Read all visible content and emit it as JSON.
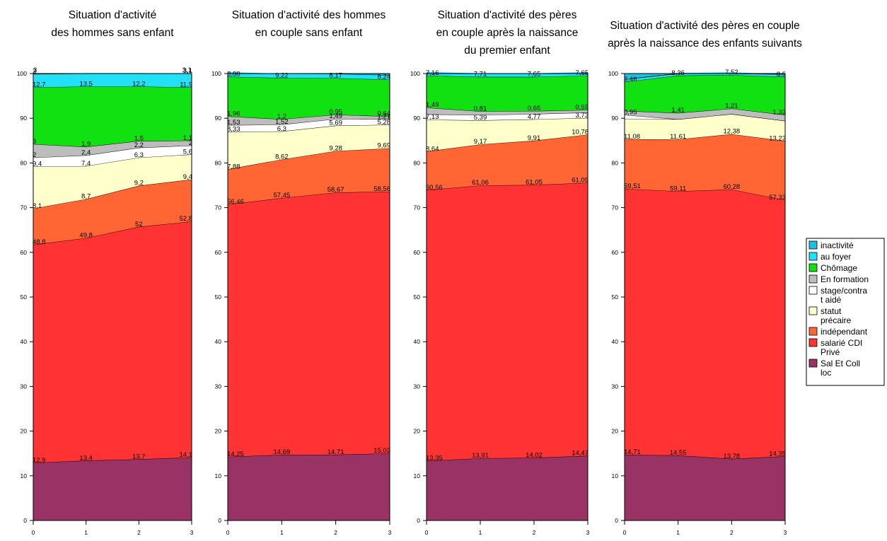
{
  "chart_data": [
    {
      "type": "area",
      "title": [
        "Situation d'activité",
        "des hommes sans enfant"
      ],
      "x": [
        0,
        1,
        2,
        3
      ],
      "ylim": [
        0,
        100
      ],
      "stack_top_label_row": [
        "3",
        "",
        "",
        "3,1"
      ],
      "series": [
        {
          "name": "Sal Et Coll loc",
          "values": [
            "12,9",
            "13,4",
            "13,7",
            "14,1"
          ]
        },
        {
          "name": "salarié CDI Privé",
          "values": [
            "48,8",
            "49,8",
            "52",
            "52,8"
          ]
        },
        {
          "name": "indépendant",
          "values": [
            "8,1",
            "8,7",
            "9,2",
            "9,4"
          ]
        },
        {
          "name": "statut précaire",
          "values": [
            "9,4",
            "7,4",
            "6,3",
            "5,6"
          ]
        },
        {
          "name": "stage/contrat aidé",
          "values": [
            "2",
            "2,4",
            "2,2",
            "2"
          ]
        },
        {
          "name": "En formation",
          "values": [
            "3",
            "1,9",
            "1,5",
            "1,1"
          ]
        },
        {
          "name": "Chômage",
          "values": [
            "12,7",
            "13,5",
            "12,2",
            "11,9"
          ]
        },
        {
          "name": "au foyer",
          "values": [
            "3",
            "",
            "",
            "3,1"
          ]
        },
        {
          "name": "inactivité",
          "values": [
            "",
            "",
            "",
            ""
          ]
        }
      ]
    },
    {
      "type": "area",
      "title": [
        "Situation d'activité des hommes",
        "en couple sans enfant"
      ],
      "x": [
        0,
        1,
        2,
        3
      ],
      "ylim": [
        0,
        100
      ],
      "stack_top_label_row": [
        "",
        "",
        "",
        ""
      ],
      "series": [
        {
          "name": "Sal Et Coll loc",
          "values": [
            "14,25",
            "14,69",
            "14,71",
            "15,02"
          ]
        },
        {
          "name": "salarié CDI Privé",
          "values": [
            "56,46",
            "57,45",
            "58,67",
            "58,56"
          ]
        },
        {
          "name": "indépendant",
          "values": [
            "7,88",
            "8,62",
            "9,28",
            "9,69"
          ]
        },
        {
          "name": "statut précaire",
          "values": [
            "8,33",
            "6,3",
            "5,69",
            "5,28"
          ]
        },
        {
          "name": "stage/contrat aidé",
          "values": [
            "1,53",
            "1,52",
            "1,49",
            "1,21"
          ]
        },
        {
          "name": "En formation",
          "values": [
            "1,96",
            "1,2",
            "0,95",
            "0,64"
          ]
        },
        {
          "name": "Chômage",
          "values": [
            "8,88",
            "9,22",
            "8,17",
            "8,24"
          ]
        },
        {
          "name": "au foyer",
          "values": [
            "",
            "",
            "",
            ""
          ]
        },
        {
          "name": "inactivité",
          "values": [
            "",
            "",
            "",
            ""
          ]
        }
      ]
    },
    {
      "type": "area",
      "title": [
        "Situation d'activité des pères",
        "en couple après la naissance",
        "du premier enfant"
      ],
      "x": [
        0,
        1,
        2,
        3
      ],
      "ylim": [
        0,
        100
      ],
      "stack_top_label_row": [
        "",
        "",
        "",
        ""
      ],
      "series": [
        {
          "name": "Sal Et Coll loc",
          "values": [
            "13,35",
            "13,91",
            "14,02",
            "14,47"
          ]
        },
        {
          "name": "salarié CDI Privé",
          "values": [
            "60,56",
            "61,06",
            "61,05",
            "61,09"
          ]
        },
        {
          "name": "indépendant",
          "values": [
            "8,64",
            "9,17",
            "9,91",
            "10,78"
          ]
        },
        {
          "name": "statut précaire",
          "values": [
            "7,13",
            "5,39",
            "4,77",
            "3,73"
          ]
        },
        {
          "name": "stage/contrat aidé",
          "values": [
            "",
            "",
            "",
            ""
          ]
        },
        {
          "name": "En formation",
          "values": [
            "1,49",
            "0,81",
            "0,65",
            "0,59"
          ]
        },
        {
          "name": "Chômage",
          "values": [
            "7,16",
            "7,71",
            "7,65",
            "7,65"
          ]
        },
        {
          "name": "au foyer",
          "values": [
            "",
            "",
            "",
            ""
          ]
        },
        {
          "name": "inactivité",
          "values": [
            "",
            "",
            "",
            ""
          ]
        }
      ]
    },
    {
      "type": "area",
      "title": [
        "Situation d'activité des pères en couple",
        "après la naissance des enfants suivants"
      ],
      "x": [
        0,
        1,
        2,
        3
      ],
      "ylim": [
        0,
        100
      ],
      "stack_top_label_row": [
        "",
        "",
        "",
        ""
      ],
      "series": [
        {
          "name": "Sal Et Coll loc",
          "values": [
            "14,71",
            "14,55",
            "13,78",
            "14,35"
          ]
        },
        {
          "name": "salarié CDI Privé",
          "values": [
            "59,51",
            "59,11",
            "60,28",
            "57,33"
          ]
        },
        {
          "name": "indépendant",
          "values": [
            "11,08",
            "11,61",
            "12,38",
            "13,23"
          ]
        },
        {
          "name": "statut précaire",
          "values": [
            "",
            "",
            "",
            ""
          ]
        },
        {
          "name": "stage/contrat aidé",
          "values": [
            "0,95",
            "",
            "",
            ""
          ]
        },
        {
          "name": "En formation",
          "values": [
            "",
            "1,41",
            "1,21",
            "1,33"
          ]
        },
        {
          "name": "Chômage",
          "values": [
            "6,46",
            "8,36",
            "7,52",
            "8,5"
          ]
        },
        {
          "name": "au foyer",
          "values": [
            "",
            "",
            "",
            ""
          ]
        },
        {
          "name": "inactivité",
          "values": [
            "",
            "",
            "",
            ""
          ]
        }
      ]
    }
  ],
  "legend": {
    "position": "right",
    "items": [
      {
        "label": [
          "inactivité"
        ],
        "color": "#1fbfdf"
      },
      {
        "label": [
          "au foyer"
        ],
        "color": "#22e0f5"
      },
      {
        "label": [
          "Chômage"
        ],
        "color": "#11e011"
      },
      {
        "label": [
          "En formation"
        ],
        "color": "#bdbdbd"
      },
      {
        "label": [
          "stage/contra",
          "t aidé"
        ],
        "color": "#ffffff"
      },
      {
        "label": [
          "statut",
          "précaire"
        ],
        "color": "#ffffcc"
      },
      {
        "label": [
          "indépendant"
        ],
        "color": "#ff6633"
      },
      {
        "label": [
          "salarié CDI",
          "Privé"
        ],
        "color": "#ff3333"
      },
      {
        "label": [
          "Sal Et Coll",
          "loc"
        ],
        "color": "#993366"
      }
    ]
  },
  "layer_colors": [
    "#993366",
    "#ff3333",
    "#ff6633",
    "#ffffcc",
    "#ffffff",
    "#bdbdbd",
    "#11e011",
    "#22e0f5",
    "#1fbfdf"
  ],
  "y_ticks": [
    0,
    10,
    20,
    30,
    40,
    50,
    60,
    70,
    80,
    90,
    100
  ],
  "x_ticks": [
    0,
    1,
    2,
    3
  ]
}
